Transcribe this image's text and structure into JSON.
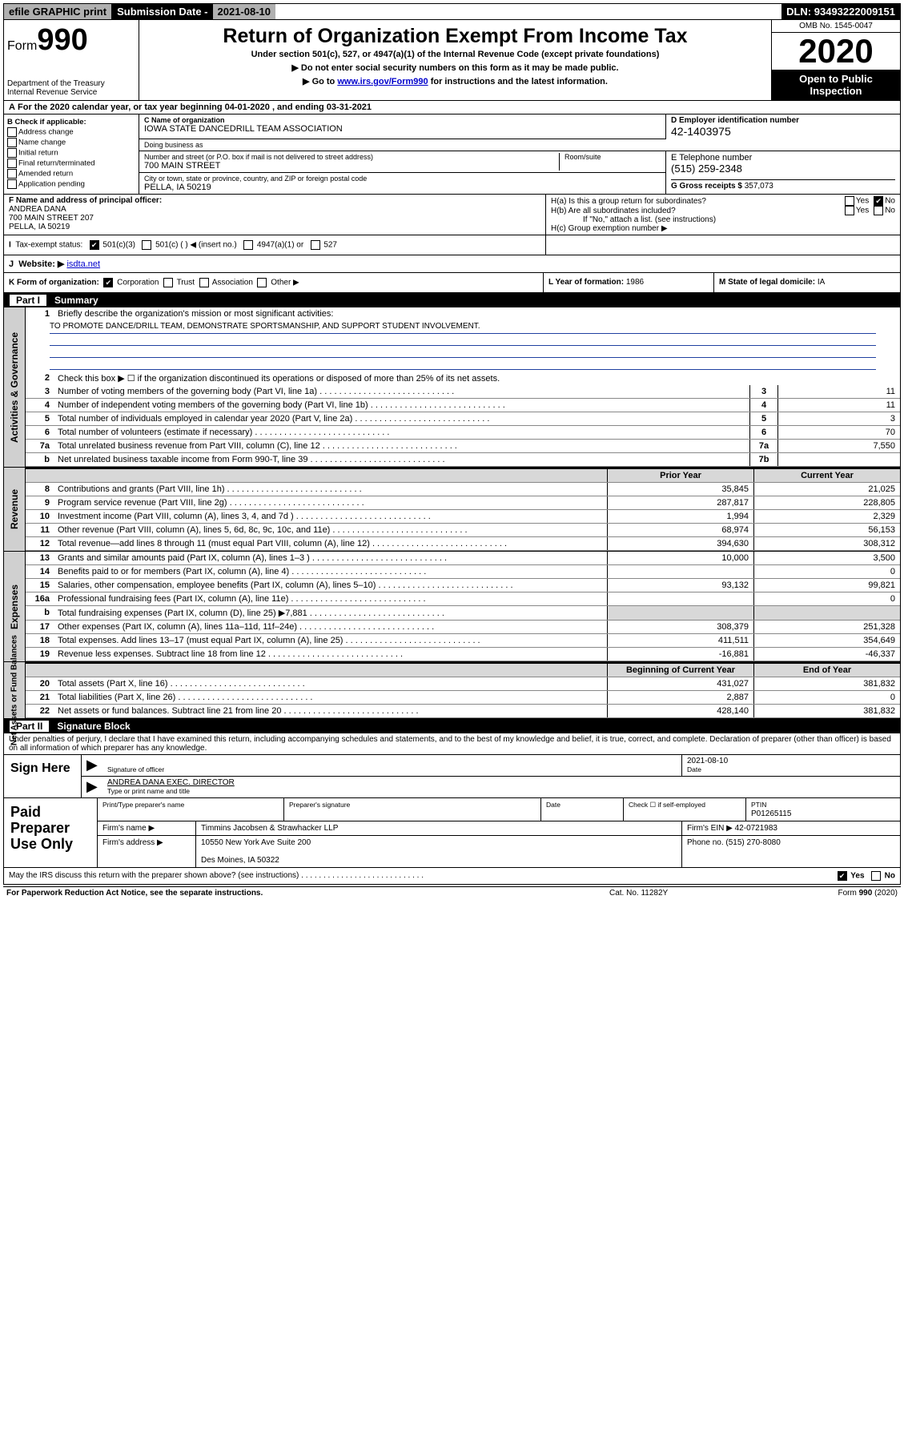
{
  "topbar": {
    "efile": "efile GRAPHIC print",
    "subdate_label": "Submission Date - ",
    "subdate": "2021-08-10",
    "dln_label": "DLN: ",
    "dln": "93493222009151"
  },
  "header": {
    "form_prefix": "Form",
    "form_num": "990",
    "dept": "Department of the Treasury\nInternal Revenue Service",
    "title": "Return of Organization Exempt From Income Tax",
    "subtitle": "Under section 501(c), 527, or 4947(a)(1) of the Internal Revenue Code (except private foundations)",
    "note1": "▶ Do not enter social security numbers on this form as it may be made public.",
    "note2_pre": "▶ Go to ",
    "note2_link": "www.irs.gov/Form990",
    "note2_post": " for instructions and the latest information.",
    "omb": "OMB No. 1545-0047",
    "year": "2020",
    "open": "Open to Public Inspection"
  },
  "rowA": "For the 2020 calendar year, or tax year beginning 04-01-2020   , and ending 03-31-2021",
  "boxB": {
    "label": "B Check if applicable:",
    "items": [
      "Address change",
      "Name change",
      "Initial return",
      "Final return/terminated",
      "Amended return",
      "Application pending"
    ]
  },
  "boxC": {
    "name_label": "C Name of organization",
    "name": "IOWA STATE DANCEDRILL TEAM ASSOCIATION",
    "dba_label": "Doing business as",
    "street_label": "Number and street (or P.O. box if mail is not delivered to street address)",
    "room_label": "Room/suite",
    "street": "700 MAIN STREET",
    "city_label": "City or town, state or province, country, and ZIP or foreign postal code",
    "city": "PELLA, IA  50219"
  },
  "boxD": {
    "label": "D Employer identification number",
    "val": "42-1403975"
  },
  "boxE": {
    "label": "E Telephone number",
    "val": "(515) 259-2348"
  },
  "boxG": {
    "label": "G Gross receipts $ ",
    "val": "357,073"
  },
  "boxF": {
    "label": "F  Name and address of principal officer:",
    "line1": "ANDREA DANA",
    "line2": "700 MAIN STREET 207",
    "line3": "PELLA, IA  50219"
  },
  "boxH": {
    "a": "H(a)  Is this a group return for subordinates?",
    "b": "H(b)  Are all subordinates included?",
    "b_note": "If \"No,\" attach a list. (see instructions)",
    "c": "H(c)  Group exemption number ▶",
    "yes": "Yes",
    "no": "No"
  },
  "rowI": {
    "label": "Tax-exempt status:",
    "opts": [
      "501(c)(3)",
      "501(c) (  ) ◀ (insert no.)",
      "4947(a)(1) or",
      "527"
    ]
  },
  "rowJ": {
    "label": "Website: ▶ ",
    "val": "isdta.net"
  },
  "rowK": {
    "k_label": "K Form of organization:",
    "k_opts": [
      "Corporation",
      "Trust",
      "Association",
      "Other ▶"
    ],
    "l": "L Year of formation: ",
    "l_val": "1986",
    "m": "M State of legal domicile: ",
    "m_val": "IA"
  },
  "partI": {
    "num": "Part I",
    "title": "Summary"
  },
  "sectA": {
    "title": "Activities & Governance",
    "l1": "Briefly describe the organization's mission or most significant activities:",
    "l1_val": "TO PROMOTE DANCE/DRILL TEAM, DEMONSTRATE SPORTSMANSHIP, AND SUPPORT STUDENT INVOLVEMENT.",
    "l2": "Check this box ▶ ☐  if the organization discontinued its operations or disposed of more than 25% of its net assets.",
    "rows": [
      {
        "n": "3",
        "t": "Number of voting members of the governing body (Part VI, line 1a)",
        "b": "3",
        "v": "11"
      },
      {
        "n": "4",
        "t": "Number of independent voting members of the governing body (Part VI, line 1b)",
        "b": "4",
        "v": "11"
      },
      {
        "n": "5",
        "t": "Total number of individuals employed in calendar year 2020 (Part V, line 2a)",
        "b": "5",
        "v": "3"
      },
      {
        "n": "6",
        "t": "Total number of volunteers (estimate if necessary)",
        "b": "6",
        "v": "70"
      },
      {
        "n": "7a",
        "t": "Total unrelated business revenue from Part VIII, column (C), line 12",
        "b": "7a",
        "v": "7,550"
      },
      {
        "n": "b",
        "t": "Net unrelated business taxable income from Form 990-T, line 39",
        "b": "7b",
        "v": ""
      }
    ]
  },
  "col_hdrs": {
    "prior": "Prior Year",
    "current": "Current Year",
    "bcy": "Beginning of Current Year",
    "eoy": "End of Year"
  },
  "sectRev": {
    "title": "Revenue",
    "rows": [
      {
        "n": "8",
        "t": "Contributions and grants (Part VIII, line 1h)",
        "p": "35,845",
        "c": "21,025"
      },
      {
        "n": "9",
        "t": "Program service revenue (Part VIII, line 2g)",
        "p": "287,817",
        "c": "228,805"
      },
      {
        "n": "10",
        "t": "Investment income (Part VIII, column (A), lines 3, 4, and 7d )",
        "p": "1,994",
        "c": "2,329"
      },
      {
        "n": "11",
        "t": "Other revenue (Part VIII, column (A), lines 5, 6d, 8c, 9c, 10c, and 11e)",
        "p": "68,974",
        "c": "56,153"
      },
      {
        "n": "12",
        "t": "Total revenue—add lines 8 through 11 (must equal Part VIII, column (A), line 12)",
        "p": "394,630",
        "c": "308,312"
      }
    ]
  },
  "sectExp": {
    "title": "Expenses",
    "rows": [
      {
        "n": "13",
        "t": "Grants and similar amounts paid (Part IX, column (A), lines 1–3 )",
        "p": "10,000",
        "c": "3,500"
      },
      {
        "n": "14",
        "t": "Benefits paid to or for members (Part IX, column (A), line 4)",
        "p": "",
        "c": "0"
      },
      {
        "n": "15",
        "t": "Salaries, other compensation, employee benefits (Part IX, column (A), lines 5–10)",
        "p": "93,132",
        "c": "99,821"
      },
      {
        "n": "16a",
        "t": "Professional fundraising fees (Part IX, column (A), line 11e)",
        "p": "",
        "c": "0"
      },
      {
        "n": "b",
        "t": "Total fundraising expenses (Part IX, column (D), line 25) ▶7,881",
        "p": "SHADE",
        "c": "SHADE"
      },
      {
        "n": "17",
        "t": "Other expenses (Part IX, column (A), lines 11a–11d, 11f–24e)",
        "p": "308,379",
        "c": "251,328"
      },
      {
        "n": "18",
        "t": "Total expenses. Add lines 13–17 (must equal Part IX, column (A), line 25)",
        "p": "411,511",
        "c": "354,649"
      },
      {
        "n": "19",
        "t": "Revenue less expenses. Subtract line 18 from line 12",
        "p": "-16,881",
        "c": "-46,337"
      }
    ]
  },
  "sectNet": {
    "title": "Net Assets or Fund Balances",
    "rows": [
      {
        "n": "20",
        "t": "Total assets (Part X, line 16)",
        "p": "431,027",
        "c": "381,832"
      },
      {
        "n": "21",
        "t": "Total liabilities (Part X, line 26)",
        "p": "2,887",
        "c": "0"
      },
      {
        "n": "22",
        "t": "Net assets or fund balances. Subtract line 21 from line 20",
        "p": "428,140",
        "c": "381,832"
      }
    ]
  },
  "partII": {
    "num": "Part II",
    "title": "Signature Block"
  },
  "penalties": "Under penalties of perjury, I declare that I have examined this return, including accompanying schedules and statements, and to the best of my knowledge and belief, it is true, correct, and complete. Declaration of preparer (other than officer) is based on all information of which preparer has any knowledge.",
  "sign": {
    "label": "Sign Here",
    "sig_of_officer": "Signature of officer",
    "date_label": "Date",
    "date": "2021-08-10",
    "name": "ANDREA DANA  EXEC. DIRECTOR",
    "name_label": "Type or print name and title"
  },
  "paid": {
    "label": "Paid Preparer Use Only",
    "h1": "Print/Type preparer's name",
    "h2": "Preparer's signature",
    "h3": "Date",
    "h4_a": "Check ☐ if self-employed",
    "h5": "PTIN",
    "ptin": "P01265115",
    "firm_name_label": "Firm's name    ▶",
    "firm_name": "Timmins Jacobsen & Strawhacker LLP",
    "firm_ein_label": "Firm's EIN ▶ ",
    "firm_ein": "42-0721983",
    "firm_addr_label": "Firm's address ▶",
    "firm_addr1": "10550 New York Ave Suite 200",
    "firm_addr2": "Des Moines, IA  50322",
    "phone_label": "Phone no. ",
    "phone": "(515) 270-8080"
  },
  "discuss": {
    "q": "May the IRS discuss this return with the preparer shown above? (see instructions)",
    "yes": "Yes",
    "no": "No"
  },
  "footer": {
    "left": "For Paperwork Reduction Act Notice, see the separate instructions.",
    "mid": "Cat. No. 11282Y",
    "right": "Form 990 (2020)"
  }
}
